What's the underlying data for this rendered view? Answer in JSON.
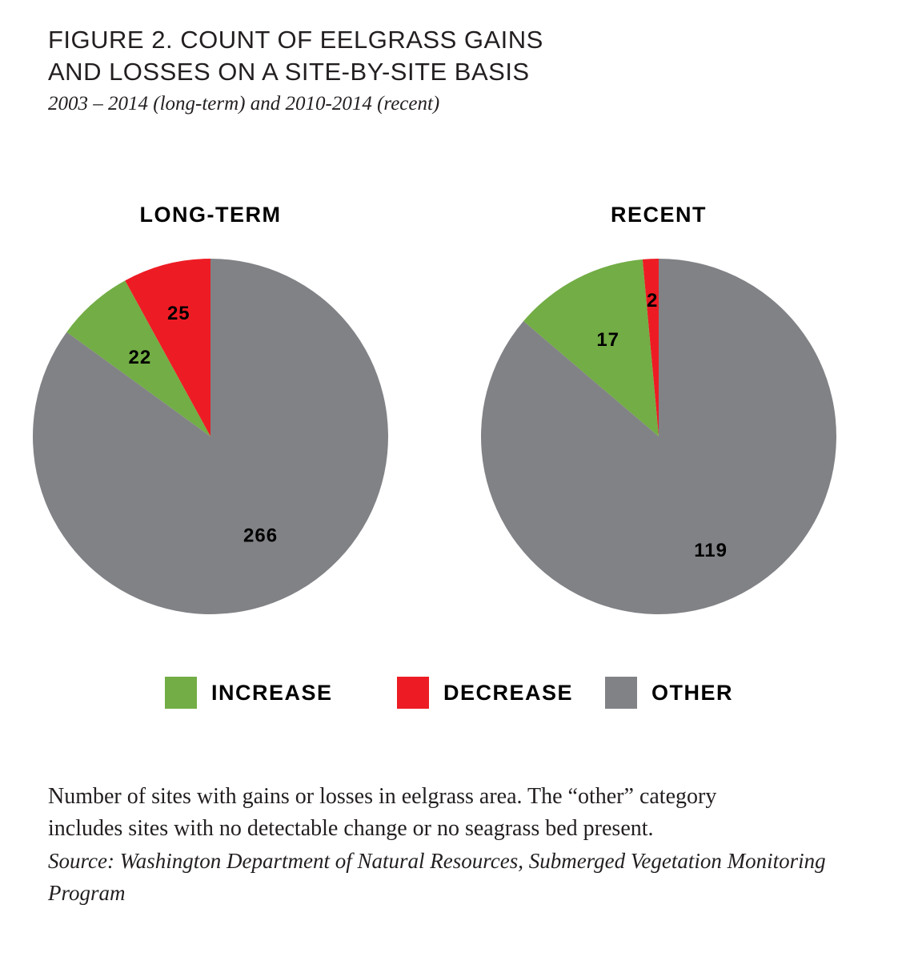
{
  "title": {
    "line1": "FIGURE 2. COUNT OF EELGRASS GAINS",
    "line2": "AND LOSSES ON A SITE-BY-SITE BASIS",
    "subtitle": "2003 – 2014 (long-term) and 2010-2014 (recent)"
  },
  "colors": {
    "increase": "#72ad45",
    "decrease": "#ed1c24",
    "other": "#818286"
  },
  "chart_data": [
    {
      "type": "pie",
      "title": "LONG-TERM",
      "slices": [
        {
          "label": "DECREASE",
          "value": 25,
          "color": "#ed1c24"
        },
        {
          "label": "INCREASE",
          "value": 22,
          "color": "#72ad45"
        },
        {
          "label": "OTHER",
          "value": 266,
          "color": "#818286"
        }
      ],
      "start": "12 o'clock",
      "direction": "counterclockwise",
      "legend_position": "bottom"
    },
    {
      "type": "pie",
      "title": "RECENT",
      "slices": [
        {
          "label": "DECREASE",
          "value": 2,
          "color": "#ed1c24"
        },
        {
          "label": "INCREASE",
          "value": 17,
          "color": "#72ad45"
        },
        {
          "label": "OTHER",
          "value": 119,
          "color": "#818286"
        }
      ],
      "start": "12 o'clock",
      "direction": "counterclockwise",
      "legend_position": "bottom"
    }
  ],
  "legend": {
    "increase": "INCREASE",
    "decrease": "DECREASE",
    "other": "OTHER"
  },
  "caption": {
    "line1": "Number of sites with gains or losses in eelgrass area. The “other” category",
    "line2": "includes sites with no detectable change or no seagrass bed present.",
    "source_line1": "Source: Washington Department of Natural Resources, Submerged Vegetation Monitoring",
    "source_line2": "Program"
  }
}
